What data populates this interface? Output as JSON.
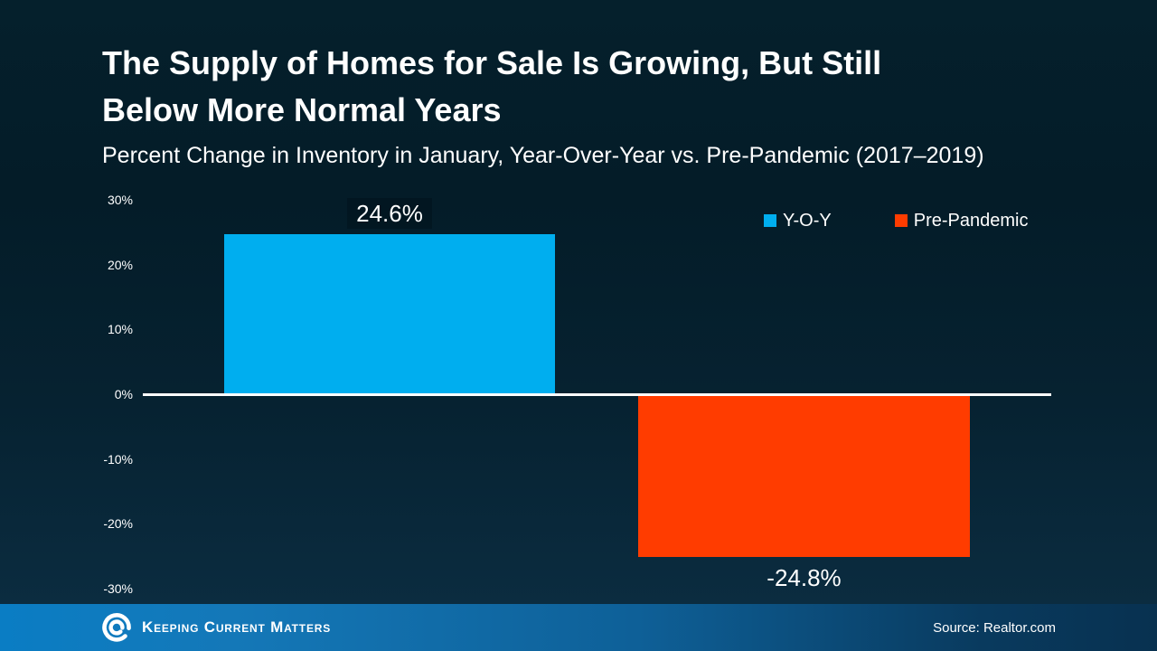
{
  "header": {
    "title_lines": [
      "The Supply of Homes for Sale Is Growing, But Still",
      "Below More Normal Years"
    ],
    "subtitle": "Percent Change in Inventory in January, Year-Over-Year vs. Pre-Pandemic (2017–2019)"
  },
  "chart_data": {
    "type": "bar",
    "title": "The Supply of Homes for Sale Is Growing, But Still Below More Normal Years",
    "subtitle": "Percent Change in Inventory in January, Year-Over-Year vs. Pre-Pandemic (2017–2019)",
    "categories": [
      "Y-O-Y",
      "Pre-Pandemic"
    ],
    "values": [
      24.6,
      -24.8
    ],
    "data_labels": [
      "24.6%",
      "-24.8%"
    ],
    "colors": [
      "#00AEEF",
      "#FF3C00"
    ],
    "ylim": [
      -30,
      30
    ],
    "yticks": [
      30,
      20,
      10,
      0,
      -10,
      -20,
      -30
    ],
    "ytick_labels": [
      "30%",
      "20%",
      "10%",
      "0%",
      "-10%",
      "-20%",
      "-30%"
    ],
    "grid": false,
    "legend_position": "top-right",
    "legend": [
      {
        "label": "Y-O-Y",
        "color": "#00AEEF"
      },
      {
        "label": "Pre-Pandemic",
        "color": "#FF3C00"
      }
    ]
  },
  "footer": {
    "brand": "Keeping Current Matters",
    "source": "Source: Realtor.com",
    "bar_colors": {
      "left": "#0A7DC4",
      "right": "#083150"
    }
  }
}
